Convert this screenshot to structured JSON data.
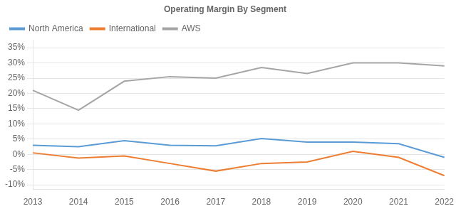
{
  "chart_data": {
    "type": "line",
    "title": "Operating Margin By Segment",
    "categories": [
      "2013",
      "2014",
      "2015",
      "2016",
      "2017",
      "2018",
      "2019",
      "2020",
      "2021",
      "2022"
    ],
    "series": [
      {
        "name": "North America",
        "color": "#5B9BD5",
        "values": [
          0.03,
          0.025,
          0.045,
          0.03,
          0.028,
          0.052,
          0.04,
          0.04,
          0.035,
          -0.01
        ]
      },
      {
        "name": "International",
        "color": "#ED7D31",
        "values": [
          0.005,
          -0.012,
          -0.005,
          -0.03,
          -0.055,
          -0.03,
          -0.025,
          0.01,
          -0.01,
          -0.07
        ]
      },
      {
        "name": "AWS",
        "color": "#A5A5A5",
        "values": [
          0.21,
          0.145,
          0.24,
          0.255,
          0.25,
          0.285,
          0.265,
          0.3,
          0.3,
          0.29
        ]
      }
    ],
    "ylim": [
      -0.115,
      0.375
    ],
    "yticks": [
      {
        "value": -0.1,
        "label": "-10%"
      },
      {
        "value": -0.05,
        "label": "-5%"
      },
      {
        "value": 0.0,
        "label": "0%"
      },
      {
        "value": 0.05,
        "label": "5%"
      },
      {
        "value": 0.1,
        "label": "10%"
      },
      {
        "value": 0.15,
        "label": "15%"
      },
      {
        "value": 0.2,
        "label": "20%"
      },
      {
        "value": 0.25,
        "label": "25%"
      },
      {
        "value": 0.3,
        "label": "30%"
      },
      {
        "value": 0.35,
        "label": "35%"
      }
    ],
    "grid": "y",
    "legend": "upper left"
  }
}
